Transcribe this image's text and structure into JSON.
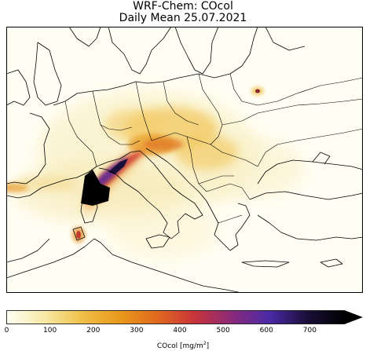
{
  "title": {
    "line1": "WRF-Chem: COcol",
    "line2": "Daily Mean 25.07.2021"
  },
  "colorbar": {
    "label_prefix": "COcol [mg/m",
    "label_sup": "2",
    "label_suffix": "]",
    "ticks": [
      "0",
      "100",
      "200",
      "300",
      "400",
      "500",
      "600",
      "700"
    ],
    "tick_values": [
      0,
      100,
      200,
      300,
      400,
      500,
      600,
      700
    ],
    "range": [
      0,
      780
    ],
    "extend": "max",
    "colors": [
      "#fffff5",
      "#f7e9a8",
      "#f0c04a",
      "#e89a1c",
      "#e06a1e",
      "#c9343a",
      "#8a2a7a",
      "#4b2aa6",
      "#1a0f3a",
      "#000000"
    ]
  },
  "map": {
    "field": "COcol",
    "date": "25.07.2021",
    "colors": {
      "background": "#fffef4",
      "border": "#000000"
    }
  }
}
